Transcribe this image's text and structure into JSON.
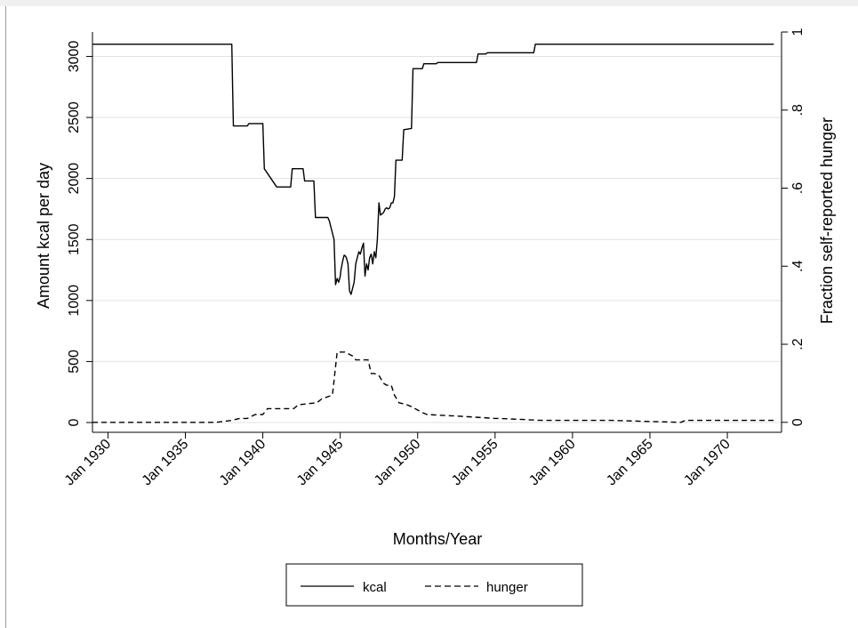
{
  "chart_data": {
    "type": "line",
    "xlabel": "Months/Year",
    "ylabel": "Amount kcal per day",
    "y2label": "Fraction self-reported hunger",
    "xlim": [
      1929.0,
      1973.5
    ],
    "ylim": [
      -80,
      3200
    ],
    "y2lim": [
      -0.02557,
      1.0
    ],
    "x_ticks": [
      1930,
      1935,
      1940,
      1945,
      1950,
      1955,
      1960,
      1965,
      1970
    ],
    "x_tick_labels": [
      "Jan 1930",
      "Jan 1935",
      "Jan 1940",
      "Jan 1945",
      "Jan 1950",
      "Jan 1955",
      "Jan 1960",
      "Jan 1965",
      "Jan 1970"
    ],
    "y_ticks": [
      0,
      500,
      1000,
      1500,
      2000,
      2500,
      3000
    ],
    "y_tick_labels": [
      "0",
      "500",
      "1000",
      "1500",
      "2000",
      "2500",
      "3000"
    ],
    "y2_ticks": [
      0,
      0.2,
      0.4,
      0.6,
      0.8,
      1
    ],
    "y2_tick_labels": [
      "0",
      ".2",
      ".4",
      ".6",
      ".8",
      "1"
    ],
    "grid": "horizontal",
    "legend_position": "bottom",
    "series": [
      {
        "name": "kcal",
        "axis": "left",
        "style": "solid",
        "color": "#000000",
        "x": [
          1929.0,
          1938.0,
          1938.05,
          1938.1,
          1939.0,
          1939.1,
          1940.0,
          1940.1,
          1940.9,
          1941.0,
          1941.8,
          1941.9,
          1942.6,
          1942.7,
          1943.3,
          1943.4,
          1944.2,
          1944.3,
          1944.4,
          1944.6,
          1944.7,
          1944.8,
          1944.9,
          1945.0,
          1945.05,
          1945.15,
          1945.25,
          1945.3,
          1945.4,
          1945.5,
          1945.6,
          1945.7,
          1945.9,
          1946.0,
          1946.1,
          1946.2,
          1946.3,
          1946.4,
          1946.5,
          1946.6,
          1946.7,
          1946.8,
          1946.9,
          1947.0,
          1947.1,
          1947.2,
          1947.3,
          1947.4,
          1947.5,
          1947.6,
          1947.8,
          1947.9,
          1948.0,
          1948.1,
          1948.2,
          1948.3,
          1948.4,
          1948.5,
          1948.6,
          1948.7,
          1948.8,
          1948.9,
          1949.0,
          1949.1,
          1949.6,
          1949.7,
          1950.3,
          1950.4,
          1951.2,
          1951.3,
          1953.8,
          1953.9,
          1954.4,
          1954.5,
          1957.5,
          1957.6,
          1973.0
        ],
        "y": [
          3100,
          3100,
          2750,
          2430,
          2430,
          2450,
          2450,
          2080,
          1930,
          1930,
          1930,
          2080,
          2080,
          1980,
          1980,
          1680,
          1680,
          1650,
          1600,
          1500,
          1130,
          1180,
          1150,
          1200,
          1250,
          1320,
          1370,
          1370,
          1350,
          1300,
          1080,
          1050,
          1150,
          1300,
          1350,
          1400,
          1380,
          1430,
          1470,
          1200,
          1300,
          1250,
          1350,
          1380,
          1300,
          1400,
          1350,
          1500,
          1800,
          1700,
          1720,
          1750,
          1760,
          1750,
          1760,
          1800,
          1800,
          1850,
          2150,
          2150,
          2150,
          2150,
          2150,
          2400,
          2410,
          2900,
          2900,
          2940,
          2940,
          2950,
          2950,
          3020,
          3020,
          3030,
          3030,
          3100,
          3100
        ]
      },
      {
        "name": "hunger",
        "axis": "right",
        "style": "dashed",
        "color": "#000000",
        "x": [
          1929.0,
          1937.0,
          1938.0,
          1938.5,
          1939.0,
          1939.5,
          1940.0,
          1940.3,
          1942.0,
          1942.3,
          1943.5,
          1943.8,
          1944.5,
          1944.8,
          1945.3,
          1945.8,
          1946.0,
          1946.2,
          1946.5,
          1946.8,
          1947.0,
          1947.2,
          1947.5,
          1947.8,
          1948.0,
          1948.3,
          1948.5,
          1948.8,
          1949.3,
          1949.6,
          1950.3,
          1950.6,
          1953.0,
          1955.0,
          1955.3,
          1958.0,
          1962.5,
          1967.0,
          1967.3,
          1973.0
        ],
        "y": [
          0.0,
          0.0,
          0.005,
          0.01,
          0.01,
          0.02,
          0.02,
          0.035,
          0.035,
          0.045,
          0.05,
          0.06,
          0.07,
          0.18,
          0.18,
          0.17,
          0.16,
          0.16,
          0.16,
          0.16,
          0.125,
          0.125,
          0.12,
          0.1,
          0.095,
          0.095,
          0.07,
          0.05,
          0.045,
          0.04,
          0.025,
          0.02,
          0.015,
          0.01,
          0.01,
          0.005,
          0.005,
          0.0,
          0.005,
          0.005
        ]
      }
    ]
  }
}
